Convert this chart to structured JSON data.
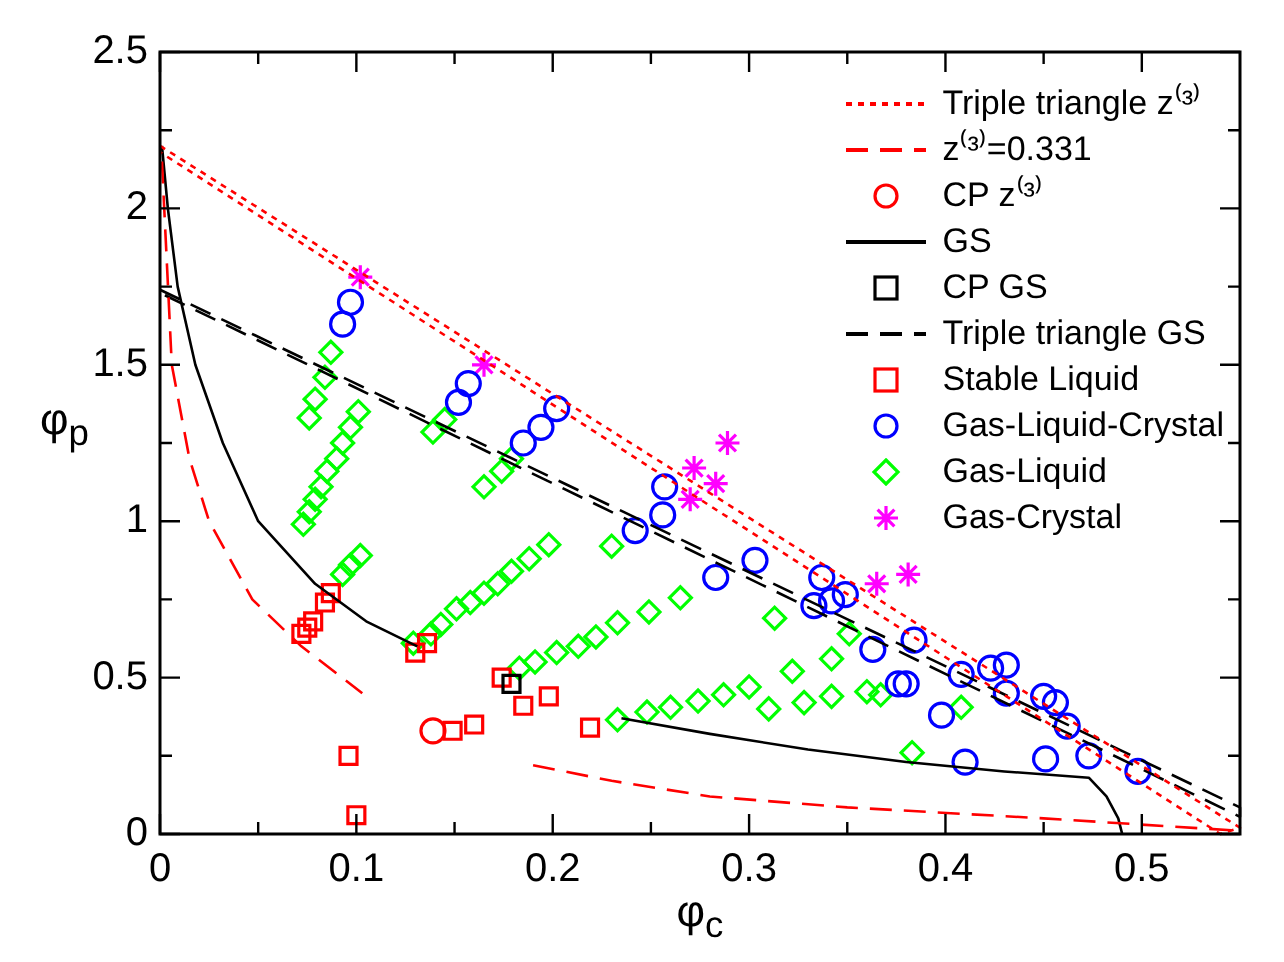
{
  "chart_data": {
    "type": "scatter",
    "xlabel": "φ$_{c}$",
    "ylabel": "φ$_{p}$",
    "xlim": [
      0,
      0.55
    ],
    "ylim": [
      0,
      2.5
    ],
    "xticks": [
      0,
      {
        "value": 0.05,
        "label": null
      },
      0.1,
      {
        "value": 0.15,
        "label": null
      },
      0.2,
      {
        "value": 0.25,
        "label": null
      },
      0.3,
      {
        "value": 0.35,
        "label": null
      },
      0.4,
      {
        "value": 0.45,
        "label": null
      },
      0.5
    ],
    "yticks": [
      0,
      {
        "value": 0.25,
        "label": null
      },
      0.5,
      {
        "value": 0.75,
        "label": null
      },
      1,
      {
        "value": 1.25,
        "label": null
      },
      1.5,
      {
        "value": 1.75,
        "label": null
      },
      2,
      {
        "value": 2.25,
        "label": null
      },
      2.5
    ],
    "legend": "top right",
    "series": [
      {
        "name": "Triple triangle z⁽³⁾",
        "type": "line",
        "line_style": "dotted",
        "marker": "none",
        "color": "#ff0000",
        "x": [
          0,
          0.55,
          0.54,
          0
        ],
        "values": [
          2.2,
          0.02,
          0,
          2.18
        ]
      },
      {
        "name": "z⁽³⁾=0.331",
        "type": "line",
        "line_style": "dashed",
        "marker": "none",
        "color": "#ff0000",
        "x": [
          0.001,
          0.006,
          0.015,
          0.025,
          0.047,
          0.072,
          0.103,
          0.15,
          0.19,
          0.23,
          0.28,
          0.35,
          0.45,
          0.55
        ],
        "values": [
          2.15,
          1.5,
          1.2,
          1,
          0.75,
          0.6,
          0.45,
          null,
          0.22,
          0.17,
          0.12,
          0.085,
          0.05,
          0.01
        ]
      },
      {
        "name": "CP z⁽³⁾",
        "marker": "circle",
        "color": "#ff0000",
        "x": [
          0.139
        ],
        "values": [
          0.33
        ]
      },
      {
        "name": "GS",
        "type": "line",
        "line_style": "solid",
        "marker": "none",
        "color": "#000000",
        "x": [
          0.001,
          0.004,
          0.009,
          0.018,
          0.032,
          0.05,
          0.079,
          0.105,
          0.131,
          0.18,
          0.235,
          0.28,
          0.33,
          0.38,
          0.43,
          0.473,
          0.482,
          0.488,
          0.49
        ],
        "values": [
          2.2,
          2,
          1.75,
          1.5,
          1.25,
          1,
          0.8,
          0.68,
          0.6,
          null,
          0.37,
          0.32,
          0.27,
          0.23,
          0.2,
          0.18,
          0.12,
          0.05,
          0
        ]
      },
      {
        "name": "CP GS",
        "marker": "square",
        "color": "#000000",
        "x": [
          0.179
        ],
        "values": [
          0.48
        ]
      },
      {
        "name": "Triple triangle GS",
        "type": "line",
        "line_style": "dashed",
        "marker": "none",
        "color": "#000000",
        "x": [
          0,
          0.55,
          0.55,
          0
        ],
        "values": [
          1.74,
          0.085,
          0.055,
          1.73
        ]
      },
      {
        "name": "Stable Liquid",
        "marker": "square",
        "color": "#ff0000",
        "x": [
          0.072,
          0.075,
          0.078,
          0.084,
          0.087,
          0.096,
          0.1,
          0.13,
          0.136,
          0.149,
          0.16,
          0.174,
          0.185,
          0.198,
          0.219
        ],
        "values": [
          0.64,
          0.66,
          0.68,
          0.74,
          0.77,
          0.25,
          0.06,
          0.58,
          0.61,
          0.33,
          0.35,
          0.5,
          0.41,
          0.44,
          0.34
        ]
      },
      {
        "name": "Gas-Liquid-Crystal",
        "marker": "circle",
        "color": "#0000ff",
        "x": [
          0.093,
          0.097,
          0.152,
          0.157,
          0.185,
          0.194,
          0.202,
          0.242,
          0.256,
          0.257,
          0.283,
          0.303,
          0.333,
          0.337,
          0.342,
          0.349,
          0.363,
          0.376,
          0.38,
          0.384,
          0.398,
          0.408,
          0.41,
          0.423,
          0.431,
          0.431,
          0.45,
          0.451,
          0.456,
          0.462,
          0.473,
          0.498
        ],
        "values": [
          1.63,
          1.7,
          1.38,
          1.44,
          1.25,
          1.3,
          1.36,
          0.97,
          1.02,
          1.11,
          0.82,
          0.875,
          0.73,
          0.82,
          0.745,
          0.765,
          0.59,
          0.48,
          0.48,
          0.62,
          0.38,
          0.51,
          0.23,
          0.53,
          0.54,
          0.45,
          0.44,
          0.24,
          0.42,
          0.345,
          0.25,
          0.2
        ]
      },
      {
        "name": "Gas-Liquid",
        "marker": "diamond",
        "color": "#00ff00",
        "x": [
          0.073,
          0.076,
          0.079,
          0.082,
          0.085,
          0.09,
          0.093,
          0.097,
          0.101,
          0.076,
          0.079,
          0.084,
          0.087,
          0.093,
          0.097,
          0.102,
          0.129,
          0.138,
          0.143,
          0.151,
          0.158,
          0.165,
          0.172,
          0.179,
          0.188,
          0.198,
          0.23,
          0.139,
          0.145,
          0.165,
          0.174,
          0.179,
          0.183,
          0.191,
          0.202,
          0.213,
          0.222,
          0.233,
          0.249,
          0.265,
          0.233,
          0.248,
          0.26,
          0.274,
          0.287,
          0.3,
          0.31,
          0.313,
          0.322,
          0.328,
          0.342,
          0.342,
          0.351,
          0.36,
          0.367,
          0.383,
          0.408
        ],
        "values": [
          0.99,
          1.03,
          1.07,
          1.11,
          1.16,
          1.2,
          1.25,
          1.3,
          1.35,
          1.33,
          1.39,
          1.46,
          1.54,
          0.83,
          0.86,
          0.89,
          0.61,
          0.64,
          0.67,
          0.72,
          0.74,
          0.77,
          0.8,
          0.84,
          0.88,
          0.925,
          0.92,
          1.285,
          1.325,
          1.11,
          1.16,
          1.2,
          0.53,
          0.55,
          0.58,
          0.6,
          0.63,
          0.675,
          0.71,
          0.755,
          0.365,
          0.39,
          0.405,
          0.425,
          0.445,
          0.47,
          0.4,
          0.69,
          0.52,
          0.42,
          0.44,
          0.56,
          0.64,
          0.455,
          0.445,
          0.26,
          0.405
        ]
      },
      {
        "name": "Gas-Crystal",
        "marker": "cross",
        "color": "#ff00ff",
        "x": [
          0.102,
          0.165,
          0.27,
          0.272,
          0.283,
          0.289,
          0.365,
          0.381
        ],
        "values": [
          1.78,
          1.5,
          1.07,
          1.17,
          1.12,
          1.25,
          0.8,
          0.83
        ]
      }
    ]
  }
}
